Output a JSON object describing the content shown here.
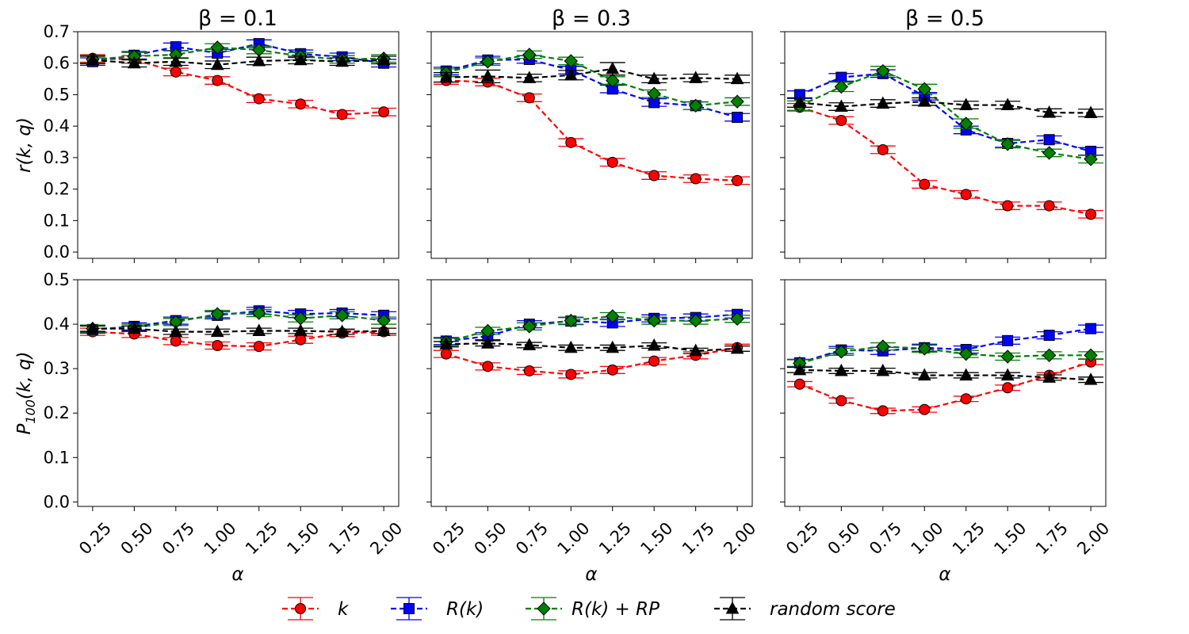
{
  "chart_data": {
    "type": "line",
    "x": [
      0.25,
      0.5,
      0.75,
      1.0,
      1.25,
      1.5,
      1.75,
      2.0
    ],
    "x_tick_labels": [
      "0.25",
      "0.50",
      "0.75",
      "1.00",
      "1.25",
      "1.50",
      "1.75",
      "2.00"
    ],
    "xlabel": "α",
    "column_titles": [
      "β = 0.1",
      "β = 0.3",
      "β = 0.5"
    ],
    "rows": [
      {
        "ylabel_main": "r(k, q)",
        "ylabel_sub": "",
        "ylabel_tail": "",
        "ylim": [
          -0.02,
          0.7
        ],
        "yticks": [
          0.0,
          0.1,
          0.2,
          0.3,
          0.4,
          0.5,
          0.6,
          0.7
        ],
        "ytick_labels": [
          "0.0",
          "0.1",
          "0.2",
          "0.3",
          "0.4",
          "0.5",
          "0.6",
          "0.7"
        ]
      },
      {
        "ylabel_main": "P",
        "ylabel_sub": "100",
        "ylabel_tail": "(k, q)",
        "ylim": [
          -0.01,
          0.5
        ],
        "yticks": [
          0.0,
          0.1,
          0.2,
          0.3,
          0.4,
          0.5
        ],
        "ytick_labels": [
          "0.0",
          "0.1",
          "0.2",
          "0.3",
          "0.4",
          "0.5"
        ]
      }
    ],
    "series_styles": [
      {
        "name": "k",
        "color": "#ff0000",
        "fill": "#ff0000",
        "marker": "circle"
      },
      {
        "name": "R(k)",
        "color": "#0000ff",
        "fill": "#0000ff",
        "marker": "square"
      },
      {
        "name": "R(k) + RP",
        "color": "#008000",
        "fill": "#008000",
        "marker": "diamond"
      },
      {
        "name": "random score",
        "color": "#000000",
        "fill": "#000000",
        "marker": "triangle"
      }
    ],
    "panels": [
      {
        "row": 0,
        "col": 0,
        "beta": 0.1,
        "series": [
          {
            "name": "k",
            "values": [
              0.615,
              0.612,
              0.572,
              0.545,
              0.487,
              0.47,
              0.437,
              0.445
            ],
            "err": [
              0.012,
              0.012,
              0.012,
              0.012,
              0.012,
              0.012,
              0.012,
              0.012
            ]
          },
          {
            "name": "R(k)",
            "values": [
              0.605,
              0.625,
              0.652,
              0.632,
              0.662,
              0.63,
              0.62,
              0.6
            ],
            "err": [
              0.012,
              0.012,
              0.012,
              0.012,
              0.012,
              0.012,
              0.012,
              0.012
            ]
          },
          {
            "name": "R(k) + RP",
            "values": [
              0.612,
              0.622,
              0.627,
              0.65,
              0.642,
              0.622,
              0.612,
              0.615
            ],
            "err": [
              0.012,
              0.012,
              0.012,
              0.012,
              0.012,
              0.012,
              0.012,
              0.012
            ]
          },
          {
            "name": "random score",
            "values": [
              0.61,
              0.6,
              0.605,
              0.595,
              0.607,
              0.61,
              0.605,
              0.61
            ],
            "err": [
              0.012,
              0.012,
              0.012,
              0.012,
              0.012,
              0.012,
              0.012,
              0.012
            ]
          }
        ]
      },
      {
        "row": 0,
        "col": 1,
        "beta": 0.3,
        "series": [
          {
            "name": "k",
            "values": [
              0.545,
              0.54,
              0.49,
              0.348,
              0.285,
              0.243,
              0.233,
              0.227
            ],
            "err": [
              0.012,
              0.012,
              0.012,
              0.012,
              0.012,
              0.012,
              0.012,
              0.012
            ]
          },
          {
            "name": "R(k)",
            "values": [
              0.575,
              0.61,
              0.612,
              0.578,
              0.518,
              0.475,
              0.465,
              0.428
            ],
            "err": [
              0.012,
              0.012,
              0.012,
              0.012,
              0.012,
              0.012,
              0.012,
              0.012
            ]
          },
          {
            "name": "R(k) + RP",
            "values": [
              0.57,
              0.605,
              0.627,
              0.607,
              0.545,
              0.503,
              0.465,
              0.478
            ],
            "err": [
              0.012,
              0.012,
              0.012,
              0.012,
              0.012,
              0.012,
              0.012,
              0.012
            ]
          },
          {
            "name": "random score",
            "values": [
              0.555,
              0.558,
              0.553,
              0.562,
              0.582,
              0.55,
              0.553,
              0.55
            ],
            "err": [
              0.015,
              0.02,
              0.012,
              0.015,
              0.02,
              0.012,
              0.012,
              0.012
            ]
          }
        ]
      },
      {
        "row": 0,
        "col": 2,
        "beta": 0.5,
        "series": [
          {
            "name": "k",
            "values": [
              0.46,
              0.418,
              0.325,
              0.215,
              0.183,
              0.147,
              0.147,
              0.12
            ],
            "err": [
              0.012,
              0.012,
              0.012,
              0.012,
              0.012,
              0.012,
              0.012,
              0.012
            ]
          },
          {
            "name": "R(k)",
            "values": [
              0.5,
              0.555,
              0.567,
              0.495,
              0.388,
              0.345,
              0.357,
              0.32
            ],
            "err": [
              0.012,
              0.012,
              0.012,
              0.012,
              0.012,
              0.012,
              0.012,
              0.012
            ]
          },
          {
            "name": "R(k) + RP",
            "values": [
              0.465,
              0.525,
              0.575,
              0.518,
              0.408,
              0.343,
              0.315,
              0.295
            ],
            "err": [
              0.015,
              0.015,
              0.015,
              0.015,
              0.015,
              0.012,
              0.012,
              0.012
            ]
          },
          {
            "name": "random score",
            "values": [
              0.475,
              0.462,
              0.472,
              0.478,
              0.467,
              0.467,
              0.443,
              0.442
            ],
            "err": [
              0.015,
              0.012,
              0.012,
              0.012,
              0.012,
              0.012,
              0.012,
              0.012
            ]
          }
        ]
      },
      {
        "row": 1,
        "col": 0,
        "beta": 0.1,
        "series": [
          {
            "name": "k",
            "values": [
              0.383,
              0.378,
              0.362,
              0.352,
              0.35,
              0.365,
              0.38,
              0.383
            ],
            "err": [
              0.008,
              0.008,
              0.008,
              0.008,
              0.008,
              0.008,
              0.008,
              0.008
            ]
          },
          {
            "name": "R(k)",
            "values": [
              0.388,
              0.395,
              0.408,
              0.42,
              0.43,
              0.423,
              0.425,
              0.42
            ],
            "err": [
              0.008,
              0.008,
              0.008,
              0.008,
              0.008,
              0.008,
              0.008,
              0.008
            ]
          },
          {
            "name": "R(k) + RP",
            "values": [
              0.39,
              0.392,
              0.405,
              0.423,
              0.425,
              0.413,
              0.42,
              0.408
            ],
            "err": [
              0.008,
              0.008,
              0.008,
              0.008,
              0.008,
              0.008,
              0.008,
              0.008
            ]
          },
          {
            "name": "random score",
            "values": [
              0.39,
              0.39,
              0.383,
              0.383,
              0.385,
              0.385,
              0.383,
              0.385
            ],
            "err": [
              0.006,
              0.006,
              0.006,
              0.006,
              0.006,
              0.006,
              0.006,
              0.006
            ]
          }
        ]
      },
      {
        "row": 1,
        "col": 1,
        "beta": 0.3,
        "series": [
          {
            "name": "k",
            "values": [
              0.333,
              0.305,
              0.295,
              0.287,
              0.297,
              0.317,
              0.33,
              0.347
            ],
            "err": [
              0.008,
              0.008,
              0.008,
              0.008,
              0.008,
              0.008,
              0.008,
              0.008
            ]
          },
          {
            "name": "R(k)",
            "values": [
              0.362,
              0.373,
              0.4,
              0.407,
              0.403,
              0.413,
              0.415,
              0.422
            ],
            "err": [
              0.008,
              0.008,
              0.008,
              0.008,
              0.008,
              0.008,
              0.008,
              0.008
            ]
          },
          {
            "name": "R(k) + RP",
            "values": [
              0.36,
              0.385,
              0.395,
              0.408,
              0.418,
              0.408,
              0.408,
              0.412
            ],
            "err": [
              0.008,
              0.008,
              0.008,
              0.008,
              0.008,
              0.008,
              0.008,
              0.008
            ]
          },
          {
            "name": "random score",
            "values": [
              0.355,
              0.357,
              0.353,
              0.347,
              0.347,
              0.352,
              0.34,
              0.345
            ],
            "err": [
              0.006,
              0.006,
              0.006,
              0.006,
              0.006,
              0.006,
              0.006,
              0.006
            ]
          }
        ]
      },
      {
        "row": 1,
        "col": 2,
        "beta": 0.5,
        "series": [
          {
            "name": "k",
            "values": [
              0.265,
              0.228,
              0.205,
              0.208,
              0.232,
              0.257,
              0.285,
              0.315
            ],
            "err": [
              0.006,
              0.006,
              0.006,
              0.006,
              0.006,
              0.006,
              0.006,
              0.006
            ]
          },
          {
            "name": "R(k)",
            "values": [
              0.313,
              0.342,
              0.34,
              0.347,
              0.343,
              0.363,
              0.375,
              0.39
            ],
            "err": [
              0.008,
              0.008,
              0.008,
              0.008,
              0.008,
              0.008,
              0.008,
              0.008
            ]
          },
          {
            "name": "R(k) + RP",
            "values": [
              0.312,
              0.338,
              0.35,
              0.345,
              0.333,
              0.327,
              0.33,
              0.33
            ],
            "err": [
              0.008,
              0.008,
              0.008,
              0.008,
              0.008,
              0.008,
              0.008,
              0.008
            ]
          },
          {
            "name": "random score",
            "values": [
              0.297,
              0.295,
              0.295,
              0.285,
              0.285,
              0.285,
              0.28,
              0.275
            ],
            "err": [
              0.006,
              0.006,
              0.006,
              0.006,
              0.006,
              0.006,
              0.006,
              0.006
            ]
          }
        ]
      }
    ],
    "legend": {
      "placement": "bottom-center",
      "entries": [
        {
          "label": "k",
          "series": "k"
        },
        {
          "label": "R(k)",
          "series": "R(k)"
        },
        {
          "label": "R(k) + RP",
          "series": "R(k) + RP"
        },
        {
          "label": "random score",
          "series": "random score"
        }
      ]
    }
  }
}
